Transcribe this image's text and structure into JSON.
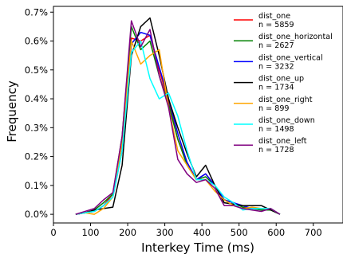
{
  "chart_data": {
    "type": "line",
    "title": "",
    "xlabel": "Interkey Time (ms)",
    "ylabel": "Frequency",
    "xlim": [
      0,
      780
    ],
    "ylim": [
      -0.03,
      0.72
    ],
    "x_ticks": [
      0,
      100,
      200,
      300,
      400,
      500,
      600,
      700
    ],
    "x_tick_labels": [
      "0",
      "100",
      "200",
      "300",
      "400",
      "500",
      "600",
      "700"
    ],
    "y_ticks": [
      0.0,
      0.1,
      0.2,
      0.3,
      0.4,
      0.5,
      0.6,
      0.7
    ],
    "y_tick_labels": [
      "0.0%",
      "0.1%",
      "0.2%",
      "0.3%",
      "0.4%",
      "0.5%",
      "0.6%",
      "0.7%"
    ],
    "grid": false,
    "legend_position": "top-right",
    "series": [
      {
        "name": "dist_one",
        "count_label": "n = 5859",
        "color": "#ff0000",
        "x": [
          60,
          85,
          110,
          135,
          160,
          185,
          210,
          235,
          260,
          285,
          310,
          335,
          360,
          385,
          410,
          435,
          460,
          485,
          510,
          535,
          560,
          585,
          610
        ],
        "y": [
          0.0,
          0.005,
          0.01,
          0.03,
          0.07,
          0.25,
          0.61,
          0.6,
          0.62,
          0.5,
          0.39,
          0.26,
          0.18,
          0.12,
          0.14,
          0.1,
          0.05,
          0.04,
          0.025,
          0.02,
          0.02,
          0.02,
          0.0
        ]
      },
      {
        "name": "dist_one_horizontal",
        "count_label": "n = 2627",
        "color": "#008000",
        "x": [
          60,
          85,
          110,
          135,
          160,
          185,
          210,
          235,
          260,
          285,
          310,
          335,
          360,
          385,
          410,
          435,
          460,
          485,
          510,
          535,
          560,
          585,
          610
        ],
        "y": [
          0.0,
          0.005,
          0.015,
          0.04,
          0.07,
          0.27,
          0.65,
          0.57,
          0.6,
          0.48,
          0.38,
          0.26,
          0.17,
          0.12,
          0.13,
          0.1,
          0.05,
          0.04,
          0.025,
          0.02,
          0.015,
          0.015,
          0.0
        ]
      },
      {
        "name": "dist_one_vertical",
        "count_label": "n = 3232",
        "color": "#0000ff",
        "x": [
          60,
          85,
          110,
          135,
          160,
          185,
          210,
          235,
          260,
          285,
          310,
          335,
          360,
          385,
          410,
          435,
          460,
          485,
          510,
          535,
          560,
          585,
          610
        ],
        "y": [
          0.0,
          0.005,
          0.01,
          0.03,
          0.06,
          0.22,
          0.59,
          0.63,
          0.62,
          0.51,
          0.4,
          0.28,
          0.18,
          0.12,
          0.14,
          0.1,
          0.05,
          0.04,
          0.03,
          0.02,
          0.02,
          0.02,
          0.0
        ]
      },
      {
        "name": "dist_one_up",
        "count_label": "n = 1734",
        "color": "#000000",
        "x": [
          60,
          85,
          110,
          135,
          160,
          185,
          210,
          235,
          260,
          285,
          310,
          335,
          360,
          385,
          410,
          435,
          460,
          485,
          510,
          535,
          560,
          585,
          610
        ],
        "y": [
          0.0,
          0.005,
          0.015,
          0.02,
          0.025,
          0.17,
          0.55,
          0.65,
          0.68,
          0.55,
          0.4,
          0.3,
          0.21,
          0.13,
          0.17,
          0.1,
          0.04,
          0.035,
          0.03,
          0.03,
          0.03,
          0.015,
          0.0
        ]
      },
      {
        "name": "dist_one_right",
        "count_label": "n = 899",
        "color": "#ffa500",
        "x": [
          60,
          85,
          110,
          135,
          160,
          185,
          210,
          235,
          260,
          285,
          310,
          335,
          360,
          385,
          410,
          435,
          460,
          485,
          510,
          535,
          560,
          585,
          610
        ],
        "y": [
          0.0,
          0.005,
          0.0,
          0.02,
          0.06,
          0.25,
          0.6,
          0.52,
          0.55,
          0.57,
          0.37,
          0.22,
          0.17,
          0.12,
          0.12,
          0.08,
          0.05,
          0.03,
          0.02,
          0.025,
          0.02,
          0.02,
          0.0
        ]
      },
      {
        "name": "dist_one_down",
        "count_label": "n = 1498",
        "color": "#00ffff",
        "x": [
          60,
          85,
          110,
          135,
          160,
          185,
          210,
          235,
          260,
          285,
          310,
          335,
          360,
          385,
          410,
          435,
          460,
          485,
          510,
          535,
          560,
          585,
          610
        ],
        "y": [
          0.0,
          0.005,
          0.01,
          0.03,
          0.06,
          0.22,
          0.56,
          0.6,
          0.47,
          0.4,
          0.42,
          0.34,
          0.22,
          0.12,
          0.12,
          0.1,
          0.06,
          0.04,
          0.015,
          0.02,
          0.02,
          0.02,
          0.0
        ]
      },
      {
        "name": "dist_one_left",
        "count_label": "n = 1728",
        "color": "#800080",
        "x": [
          60,
          85,
          110,
          135,
          160,
          185,
          210,
          235,
          260,
          285,
          310,
          335,
          360,
          385,
          410,
          435,
          460,
          485,
          510,
          535,
          560,
          585,
          610
        ],
        "y": [
          0.0,
          0.01,
          0.02,
          0.05,
          0.075,
          0.27,
          0.67,
          0.58,
          0.64,
          0.48,
          0.37,
          0.19,
          0.14,
          0.11,
          0.12,
          0.09,
          0.03,
          0.03,
          0.02,
          0.015,
          0.01,
          0.02,
          0.0
        ]
      }
    ]
  }
}
